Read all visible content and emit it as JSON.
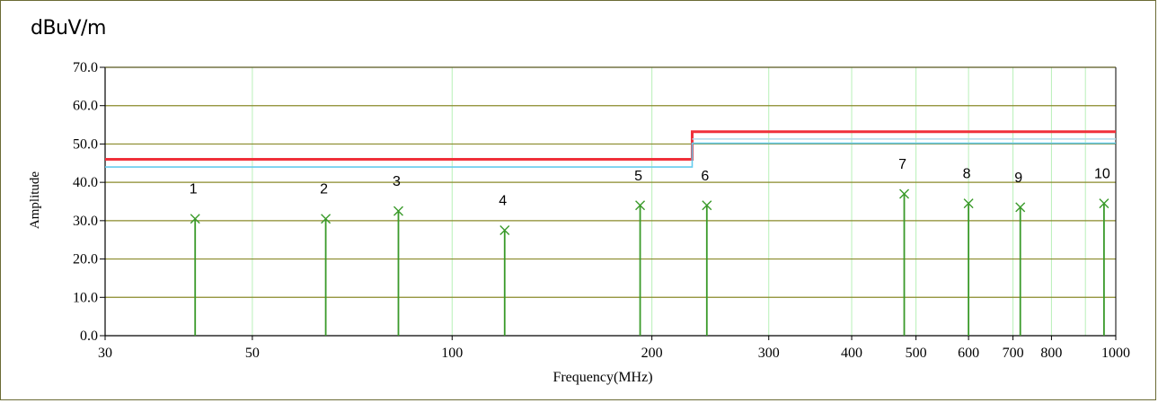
{
  "chart_data": {
    "type": "line",
    "unit_label": "dBuV/m",
    "xlabel": "Frequency(MHz)",
    "ylabel": "Amplitude",
    "xscale": "log",
    "xlim": [
      30,
      1000
    ],
    "ylim": [
      0,
      70
    ],
    "y_ticks": [
      "0.0",
      "10.0",
      "20.0",
      "30.0",
      "40.0",
      "50.0",
      "60.0",
      "70.0"
    ],
    "x_ticks": [
      {
        "value": 30,
        "label": "30"
      },
      {
        "value": 50,
        "label": "50"
      },
      {
        "value": 100,
        "label": "100"
      },
      {
        "value": 200,
        "label": "200"
      },
      {
        "value": 300,
        "label": "300"
      },
      {
        "value": 400,
        "label": "400"
      },
      {
        "value": 500,
        "label": "500"
      },
      {
        "value": 600,
        "label": "600"
      },
      {
        "value": 700,
        "label": "700"
      },
      {
        "value": 800,
        "label": "800"
      },
      {
        "value": 1000,
        "label": "1000"
      }
    ],
    "x_grid_values": [
      30,
      50,
      100,
      200,
      300,
      400,
      500,
      600,
      700,
      800,
      900,
      1000
    ],
    "grid": true,
    "limit_lines": [
      {
        "color": "#f0303a",
        "segments": [
          {
            "x": [
              30,
              230
            ],
            "y": 46.0
          },
          {
            "x": [
              230,
              1000
            ],
            "y": 53.2
          }
        ]
      },
      {
        "color": "#66ccee",
        "segments": [
          {
            "x": [
              30,
              230
            ],
            "y": 44.0
          },
          {
            "x": [
              230,
              1000
            ],
            "y": 50.2
          }
        ]
      },
      {
        "color": "#b0d8e8",
        "segments": [
          {
            "x": [
              230,
              1000
            ],
            "y": 51.3
          }
        ]
      }
    ],
    "markers": [
      {
        "label": "1",
        "x": 41.0,
        "y": 30.5
      },
      {
        "label": "2",
        "x": 64.5,
        "y": 30.5
      },
      {
        "label": "3",
        "x": 83.0,
        "y": 32.5
      },
      {
        "label": "4",
        "x": 120.0,
        "y": 27.5
      },
      {
        "label": "5",
        "x": 192.0,
        "y": 34.0
      },
      {
        "label": "6",
        "x": 242.0,
        "y": 34.0
      },
      {
        "label": "7",
        "x": 480.0,
        "y": 37.0
      },
      {
        "label": "8",
        "x": 600.0,
        "y": 34.5
      },
      {
        "label": "9",
        "x": 718.0,
        "y": 33.5
      },
      {
        "label": "10",
        "x": 960.0,
        "y": 34.5
      }
    ],
    "colors": {
      "grid_h": "#8a8a2a",
      "grid_v": "#b8f0b8",
      "marker": "#3a9a2a",
      "axis": "#000000"
    }
  }
}
